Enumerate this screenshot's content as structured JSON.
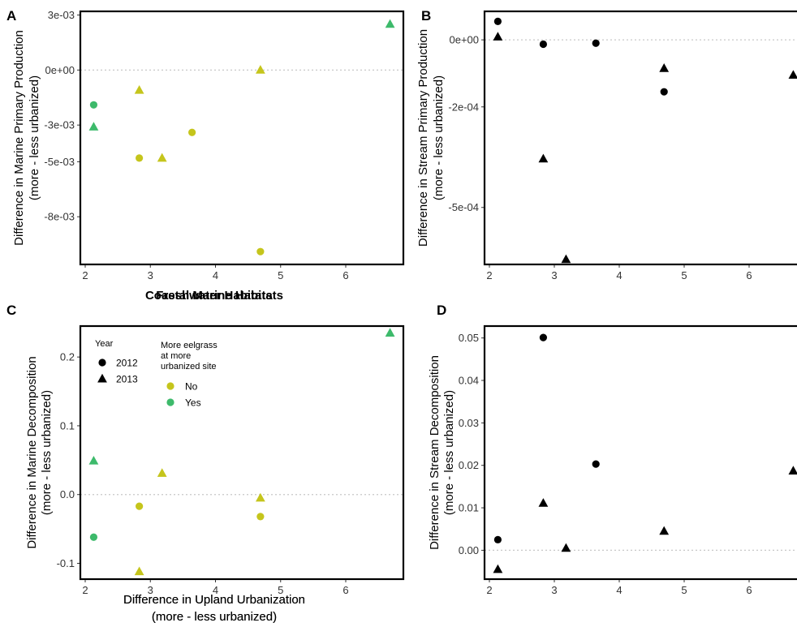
{
  "colors": {
    "No": "#c5c51c",
    "Yes": "#3dba6b",
    "black": "#000000"
  },
  "chart_data": [
    {
      "panel": "A",
      "type": "scatter",
      "xlabel": "Coastal Marine Habitats",
      "xlabel_bold": true,
      "ylabel": [
        "Difference in Marine Primary Production",
        "(more - less urbanized)"
      ],
      "xlim": [
        1.95,
        6.85
      ],
      "ylim": [
        -0.0106,
        0.0032
      ],
      "xticks": [
        2,
        3,
        4,
        5,
        6
      ],
      "yticks": [
        0.003,
        0.0,
        -0.003,
        -0.005,
        -0.008
      ],
      "ytick_labels": [
        "3e-03",
        "0e+00",
        "-3e-03",
        "-5e-03",
        "-8e-03"
      ],
      "zero_line": true,
      "points": [
        {
          "x": 2.13,
          "y": -0.0019,
          "year": "2012",
          "eelgrass": "Yes"
        },
        {
          "x": 2.13,
          "y": -0.0031,
          "year": "2013",
          "eelgrass": "Yes"
        },
        {
          "x": 2.83,
          "y": -0.0011,
          "year": "2013",
          "eelgrass": "No"
        },
        {
          "x": 2.83,
          "y": -0.0048,
          "year": "2012",
          "eelgrass": "No"
        },
        {
          "x": 3.18,
          "y": -0.0048,
          "year": "2013",
          "eelgrass": "No"
        },
        {
          "x": 3.64,
          "y": -0.0034,
          "year": "2012",
          "eelgrass": "No"
        },
        {
          "x": 4.69,
          "y": 0.0,
          "year": "2013",
          "eelgrass": "No"
        },
        {
          "x": 4.69,
          "y": -0.0099,
          "year": "2012",
          "eelgrass": "No"
        },
        {
          "x": 6.68,
          "y": 0.0025,
          "year": "2013",
          "eelgrass": "Yes"
        }
      ]
    },
    {
      "panel": "B",
      "type": "scatter",
      "xlabel": "Freshwater Habitats",
      "xlabel_bold": true,
      "ylabel": [
        "Difference in Stream Primary Production",
        "(more - less urbanized)"
      ],
      "xlim": [
        1.95,
        6.85
      ],
      "ylim": [
        -0.00067,
        8.5e-05
      ],
      "xticks": [
        2,
        3,
        4,
        5,
        6
      ],
      "yticks": [
        0.0,
        -0.0002,
        -0.0005
      ],
      "ytick_labels": [
        "0e+00",
        "-2e-04",
        "-5e-04"
      ],
      "zero_line": true,
      "points": [
        {
          "x": 2.13,
          "y": 5.5e-05,
          "year": "2012",
          "eelgrass": null
        },
        {
          "x": 2.13,
          "y": 9e-06,
          "year": "2013",
          "eelgrass": null
        },
        {
          "x": 2.83,
          "y": -1.3e-05,
          "year": "2012",
          "eelgrass": null
        },
        {
          "x": 2.83,
          "y": -0.000355,
          "year": "2013",
          "eelgrass": null
        },
        {
          "x": 3.18,
          "y": -0.000655,
          "year": "2013",
          "eelgrass": null
        },
        {
          "x": 3.64,
          "y": -1e-05,
          "year": "2012",
          "eelgrass": null
        },
        {
          "x": 4.69,
          "y": -8.5e-05,
          "year": "2013",
          "eelgrass": null
        },
        {
          "x": 4.69,
          "y": -0.000155,
          "year": "2012",
          "eelgrass": null
        },
        {
          "x": 6.68,
          "y": -0.000105,
          "year": "2013",
          "eelgrass": null
        }
      ]
    },
    {
      "panel": "C",
      "type": "scatter",
      "xlabel": [
        "Difference in Upland Urbanization",
        "(more - less urbanized)"
      ],
      "xlabel_bold": false,
      "ylabel": [
        "Difference in Marine Decomposition",
        "(more - less urbanized)"
      ],
      "xlim": [
        1.95,
        6.85
      ],
      "ylim": [
        -0.123,
        0.245
      ],
      "xticks": [
        2,
        3,
        4,
        5,
        6
      ],
      "yticks": [
        0.2,
        0.1,
        0.0,
        -0.1
      ],
      "ytick_labels": [
        "0.2",
        "0.1",
        "0.0",
        "-0.1"
      ],
      "zero_line": true,
      "legend": {
        "year_title": "Year",
        "year_items": [
          "2012",
          "2013"
        ],
        "eelgrass_title": [
          "More eelgrass",
          "at more",
          "urbanized site"
        ],
        "eelgrass_items": [
          "No",
          "Yes"
        ]
      },
      "points": [
        {
          "x": 2.13,
          "y": 0.049,
          "year": "2013",
          "eelgrass": "Yes"
        },
        {
          "x": 2.13,
          "y": -0.062,
          "year": "2012",
          "eelgrass": "Yes"
        },
        {
          "x": 2.83,
          "y": -0.017,
          "year": "2012",
          "eelgrass": "No"
        },
        {
          "x": 2.83,
          "y": -0.112,
          "year": "2013",
          "eelgrass": "No"
        },
        {
          "x": 3.18,
          "y": 0.031,
          "year": "2013",
          "eelgrass": "No"
        },
        {
          "x": 4.69,
          "y": -0.005,
          "year": "2013",
          "eelgrass": "No"
        },
        {
          "x": 4.69,
          "y": -0.032,
          "year": "2012",
          "eelgrass": "No"
        },
        {
          "x": 6.68,
          "y": 0.235,
          "year": "2013",
          "eelgrass": "Yes"
        }
      ]
    },
    {
      "panel": "D",
      "type": "scatter",
      "xlabel": [
        "Difference in Upland Urbanization",
        "(more - less urbanized)"
      ],
      "xlabel_bold": false,
      "ylabel": [
        "Difference in Stream Decomposition",
        "(more - less urbanized)"
      ],
      "xlim": [
        1.95,
        6.85
      ],
      "ylim": [
        -0.0068,
        0.0528
      ],
      "xticks": [
        2,
        3,
        4,
        5,
        6
      ],
      "yticks": [
        0.05,
        0.04,
        0.03,
        0.02,
        0.01,
        0.0
      ],
      "ytick_labels": [
        "0.05",
        "0.04",
        "0.03",
        "0.02",
        "0.01",
        "0.00"
      ],
      "zero_line": true,
      "points": [
        {
          "x": 2.13,
          "y": 0.0025,
          "year": "2012",
          "eelgrass": null
        },
        {
          "x": 2.13,
          "y": -0.0045,
          "year": "2013",
          "eelgrass": null
        },
        {
          "x": 2.83,
          "y": 0.0501,
          "year": "2012",
          "eelgrass": null
        },
        {
          "x": 2.83,
          "y": 0.0111,
          "year": "2013",
          "eelgrass": null
        },
        {
          "x": 3.18,
          "y": 0.0005,
          "year": "2013",
          "eelgrass": null
        },
        {
          "x": 3.64,
          "y": 0.0203,
          "year": "2012",
          "eelgrass": null
        },
        {
          "x": 4.69,
          "y": 0.0045,
          "year": "2013",
          "eelgrass": null
        },
        {
          "x": 6.68,
          "y": 0.0187,
          "year": "2013",
          "eelgrass": null
        }
      ]
    }
  ]
}
